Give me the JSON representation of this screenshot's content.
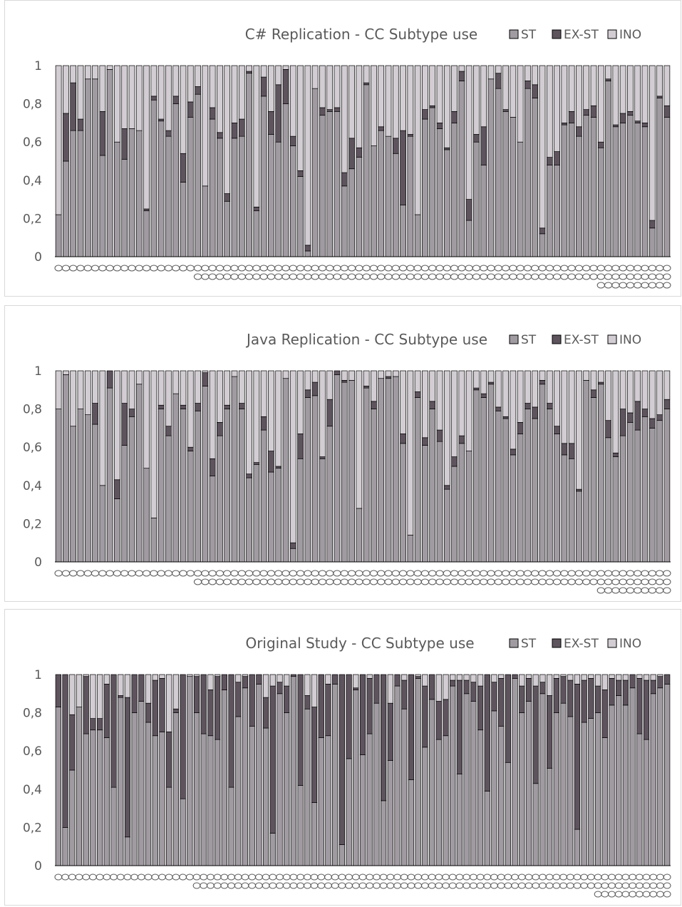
{
  "colors": {
    "ST": "#a09aa1",
    "EX-ST": "#5e545e",
    "INO": "#d2cdd2",
    "outline": "#000000",
    "text": "#595959"
  },
  "chart_data": [
    {
      "type": "bar",
      "stacked": true,
      "title": "C# Replication - CC Subtype use",
      "legend": [
        "ST",
        "EX-ST",
        "INO"
      ],
      "legend_position": "top-right",
      "ylim": [
        0,
        1
      ],
      "yticks": [
        "0",
        "0,2",
        "0,4",
        "0,6",
        "0,8",
        "1"
      ],
      "category_label_glyph": "○",
      "series": [
        {
          "name": "ST",
          "values": [
            0.22,
            0.5,
            0.66,
            0.66,
            0.93,
            0.93,
            0.53,
            0.98,
            0.6,
            0.51,
            0.67,
            0.66,
            0.24,
            0.82,
            0.71,
            0.63,
            0.8,
            0.39,
            0.73,
            0.85,
            0.37,
            0.72,
            0.62,
            0.29,
            0.62,
            0.63,
            0.96,
            0.24,
            0.84,
            0.64,
            0.6,
            0.8,
            0.58,
            0.42,
            0.03,
            0.88,
            0.74,
            0.76,
            0.76,
            0.37,
            0.46,
            0.52,
            0.9,
            0.58,
            0.66,
            0.63,
            0.54,
            0.27,
            0.63,
            0.22,
            0.72,
            0.78,
            0.67,
            0.56,
            0.7,
            0.92,
            0.19,
            0.6,
            0.48,
            0.93,
            0.88,
            0.76,
            0.73,
            0.6,
            0.88,
            0.83,
            0.12,
            0.48,
            0.48,
            0.69,
            0.7,
            0.63,
            0.74,
            0.73,
            0.57,
            0.92,
            0.68,
            0.7,
            0.74,
            0.7,
            0.68,
            0.15,
            0.83,
            0.73
          ]
        },
        {
          "name": "EX-ST",
          "values": [
            0.0,
            0.25,
            0.25,
            0.06,
            0.0,
            0.0,
            0.23,
            0.0,
            0.0,
            0.16,
            0.0,
            0.0,
            0.01,
            0.02,
            0.01,
            0.03,
            0.04,
            0.15,
            0.08,
            0.04,
            0.0,
            0.06,
            0.03,
            0.04,
            0.08,
            0.09,
            0.01,
            0.02,
            0.1,
            0.12,
            0.3,
            0.18,
            0.05,
            0.03,
            0.03,
            0.0,
            0.04,
            0.01,
            0.02,
            0.07,
            0.16,
            0.05,
            0.01,
            0.0,
            0.02,
            0.0,
            0.08,
            0.39,
            0.01,
            0.0,
            0.05,
            0.01,
            0.03,
            0.01,
            0.06,
            0.05,
            0.11,
            0.04,
            0.2,
            0.0,
            0.08,
            0.01,
            0.0,
            0.0,
            0.04,
            0.07,
            0.03,
            0.04,
            0.07,
            0.01,
            0.06,
            0.05,
            0.03,
            0.06,
            0.03,
            0.01,
            0.01,
            0.05,
            0.02,
            0.01,
            0.02,
            0.04,
            0.01,
            0.06
          ]
        },
        {
          "name": "INO",
          "values": [
            0.78,
            0.25,
            0.09,
            0.28,
            0.07,
            0.07,
            0.24,
            0.02,
            0.4,
            0.33,
            0.33,
            0.34,
            0.75,
            0.16,
            0.28,
            0.34,
            0.16,
            0.46,
            0.19,
            0.11,
            0.63,
            0.22,
            0.35,
            0.67,
            0.3,
            0.28,
            0.03,
            0.74,
            0.06,
            0.24,
            0.1,
            0.02,
            0.37,
            0.55,
            0.94,
            0.12,
            0.22,
            0.23,
            0.22,
            0.56,
            0.38,
            0.43,
            0.09,
            0.42,
            0.32,
            0.37,
            0.38,
            0.34,
            0.36,
            0.78,
            0.23,
            0.21,
            0.3,
            0.43,
            0.24,
            0.03,
            0.7,
            0.36,
            0.32,
            0.07,
            0.04,
            0.23,
            0.27,
            0.4,
            0.08,
            0.1,
            0.85,
            0.48,
            0.45,
            0.3,
            0.24,
            0.32,
            0.23,
            0.21,
            0.4,
            0.07,
            0.31,
            0.25,
            0.24,
            0.29,
            0.3,
            0.81,
            0.16,
            0.21
          ]
        }
      ]
    },
    {
      "type": "bar",
      "stacked": true,
      "title": "Java Replication - CC Subtype use",
      "legend": [
        "ST",
        "EX-ST",
        "INO"
      ],
      "legend_position": "top-right",
      "ylim": [
        0,
        1
      ],
      "yticks": [
        "0",
        "0,2",
        "0,4",
        "0,6",
        "0,8",
        "1"
      ],
      "category_label_glyph": "○",
      "series": [
        {
          "name": "ST",
          "values": [
            0.8,
            0.98,
            0.71,
            0.8,
            0.77,
            0.72,
            0.4,
            0.91,
            0.33,
            0.61,
            0.76,
            0.93,
            0.49,
            0.23,
            0.8,
            0.66,
            0.88,
            0.8,
            0.58,
            0.79,
            0.92,
            0.45,
            0.66,
            0.8,
            0.97,
            0.8,
            0.44,
            0.51,
            0.69,
            0.47,
            0.49,
            0.96,
            0.07,
            0.54,
            0.86,
            0.87,
            0.54,
            0.71,
            0.98,
            0.94,
            0.95,
            0.28,
            0.91,
            0.8,
            0.96,
            0.96,
            0.97,
            0.62,
            0.14,
            0.86,
            0.61,
            0.8,
            0.63,
            0.38,
            0.5,
            0.62,
            0.58,
            0.9,
            0.86,
            0.93,
            0.79,
            0.75,
            0.56,
            0.67,
            0.8,
            0.75,
            0.93,
            0.8,
            0.67,
            0.56,
            0.54,
            0.37,
            0.95,
            0.86,
            0.93,
            0.65,
            0.55,
            0.66,
            0.73,
            0.69,
            0.76,
            0.7,
            0.74,
            0.8
          ]
        },
        {
          "name": "EX-ST",
          "values": [
            0.0,
            0.0,
            0.0,
            0.0,
            0.0,
            0.11,
            0.0,
            0.09,
            0.1,
            0.22,
            0.04,
            0.0,
            0.0,
            0.0,
            0.02,
            0.05,
            0.0,
            0.02,
            0.02,
            0.04,
            0.07,
            0.09,
            0.07,
            0.02,
            0.0,
            0.03,
            0.02,
            0.01,
            0.07,
            0.11,
            0.01,
            0.0,
            0.03,
            0.13,
            0.04,
            0.07,
            0.01,
            0.14,
            0.02,
            0.01,
            0.0,
            0.0,
            0.01,
            0.04,
            0.0,
            0.01,
            0.0,
            0.05,
            0.0,
            0.03,
            0.04,
            0.04,
            0.06,
            0.02,
            0.05,
            0.04,
            0.0,
            0.01,
            0.02,
            0.01,
            0.02,
            0.01,
            0.03,
            0.06,
            0.03,
            0.06,
            0.02,
            0.03,
            0.04,
            0.06,
            0.08,
            0.01,
            0.0,
            0.04,
            0.01,
            0.09,
            0.02,
            0.14,
            0.05,
            0.15,
            0.04,
            0.05,
            0.03,
            0.05
          ]
        },
        {
          "name": "INO",
          "values": [
            0.2,
            0.02,
            0.29,
            0.2,
            0.23,
            0.17,
            0.6,
            0.0,
            0.57,
            0.17,
            0.2,
            0.07,
            0.51,
            0.77,
            0.18,
            0.29,
            0.12,
            0.18,
            0.4,
            0.17,
            0.01,
            0.46,
            0.27,
            0.18,
            0.03,
            0.17,
            0.54,
            0.48,
            0.24,
            0.42,
            0.5,
            0.04,
            0.9,
            0.33,
            0.1,
            0.06,
            0.45,
            0.15,
            0.0,
            0.05,
            0.05,
            0.72,
            0.08,
            0.16,
            0.04,
            0.03,
            0.03,
            0.33,
            0.86,
            0.11,
            0.35,
            0.16,
            0.31,
            0.6,
            0.45,
            0.34,
            0.42,
            0.09,
            0.12,
            0.06,
            0.19,
            0.24,
            0.41,
            0.27,
            0.17,
            0.19,
            0.05,
            0.17,
            0.29,
            0.38,
            0.38,
            0.62,
            0.05,
            0.1,
            0.06,
            0.26,
            0.43,
            0.2,
            0.22,
            0.16,
            0.2,
            0.25,
            0.23,
            0.15
          ]
        }
      ]
    },
    {
      "type": "bar",
      "stacked": true,
      "title": "Original Study - CC Subtype use",
      "legend": [
        "ST",
        "EX-ST",
        "INO"
      ],
      "legend_position": "top-right",
      "ylim": [
        0,
        1
      ],
      "yticks": [
        "0",
        "0,2",
        "0,4",
        "0,6",
        "0,8",
        "1"
      ],
      "category_label_glyph": "○",
      "series": [
        {
          "name": "ST",
          "values": [
            0.83,
            0.2,
            0.5,
            0.83,
            0.69,
            0.71,
            0.71,
            0.67,
            0.41,
            0.88,
            0.15,
            0.8,
            0.86,
            0.75,
            0.68,
            0.7,
            0.41,
            0.8,
            0.35,
            0.99,
            0.8,
            0.69,
            0.68,
            0.66,
            0.92,
            0.41,
            0.78,
            0.93,
            0.73,
            0.95,
            0.72,
            0.17,
            0.9,
            0.8,
            0.99,
            0.42,
            0.82,
            0.33,
            0.67,
            0.68,
            0.95,
            0.11,
            0.56,
            0.92,
            0.58,
            0.69,
            0.85,
            0.34,
            0.55,
            0.94,
            0.82,
            0.45,
            0.98,
            0.62,
            0.87,
            0.66,
            0.68,
            0.94,
            0.48,
            0.9,
            0.86,
            0.71,
            0.39,
            0.81,
            0.73,
            0.54,
            0.98,
            0.8,
            0.86,
            0.43,
            0.9,
            0.51,
            0.8,
            0.85,
            0.78,
            0.19,
            0.75,
            0.77,
            0.8,
            0.67,
            0.84,
            0.89,
            0.84,
            0.93,
            0.69,
            0.66,
            0.9,
            0.93,
            0.95
          ]
        },
        {
          "name": "EX-ST",
          "values": [
            0.17,
            0.8,
            0.29,
            0.0,
            0.3,
            0.06,
            0.06,
            0.28,
            0.59,
            0.01,
            0.73,
            0.2,
            0.14,
            0.1,
            0.29,
            0.28,
            0.29,
            0.02,
            0.65,
            0.0,
            0.19,
            0.31,
            0.24,
            0.33,
            0.08,
            0.59,
            0.18,
            0.06,
            0.27,
            0.05,
            0.16,
            0.77,
            0.06,
            0.14,
            0.01,
            0.58,
            0.07,
            0.5,
            0.33,
            0.27,
            0.05,
            0.89,
            0.44,
            0.01,
            0.42,
            0.29,
            0.15,
            0.66,
            0.3,
            0.06,
            0.15,
            0.55,
            0.01,
            0.32,
            0.13,
            0.2,
            0.19,
            0.03,
            0.49,
            0.07,
            0.1,
            0.23,
            0.61,
            0.15,
            0.25,
            0.46,
            0.02,
            0.14,
            0.12,
            0.51,
            0.06,
            0.38,
            0.18,
            0.14,
            0.19,
            0.76,
            0.22,
            0.21,
            0.14,
            0.25,
            0.14,
            0.08,
            0.13,
            0.07,
            0.29,
            0.31,
            0.07,
            0.06,
            0.05
          ]
        },
        {
          "name": "INO",
          "values": [
            0.0,
            0.0,
            0.21,
            0.17,
            0.01,
            0.23,
            0.23,
            0.05,
            0.0,
            0.11,
            0.12,
            0.0,
            0.0,
            0.15,
            0.03,
            0.02,
            0.3,
            0.18,
            0.0,
            0.01,
            0.01,
            0.0,
            0.08,
            0.01,
            0.0,
            0.0,
            0.04,
            0.01,
            0.0,
            0.0,
            0.12,
            0.06,
            0.04,
            0.06,
            0.0,
            0.0,
            0.11,
            0.17,
            0.0,
            0.05,
            0.0,
            0.0,
            0.0,
            0.07,
            0.0,
            0.02,
            0.0,
            0.0,
            0.15,
            0.0,
            0.03,
            0.0,
            0.01,
            0.06,
            0.0,
            0.14,
            0.13,
            0.03,
            0.03,
            0.03,
            0.04,
            0.06,
            0.0,
            0.04,
            0.02,
            0.0,
            0.0,
            0.06,
            0.02,
            0.06,
            0.04,
            0.11,
            0.02,
            0.01,
            0.03,
            0.05,
            0.03,
            0.02,
            0.06,
            0.08,
            0.02,
            0.03,
            0.03,
            0.0,
            0.02,
            0.03,
            0.03,
            0.01,
            0.0
          ]
        }
      ]
    }
  ]
}
